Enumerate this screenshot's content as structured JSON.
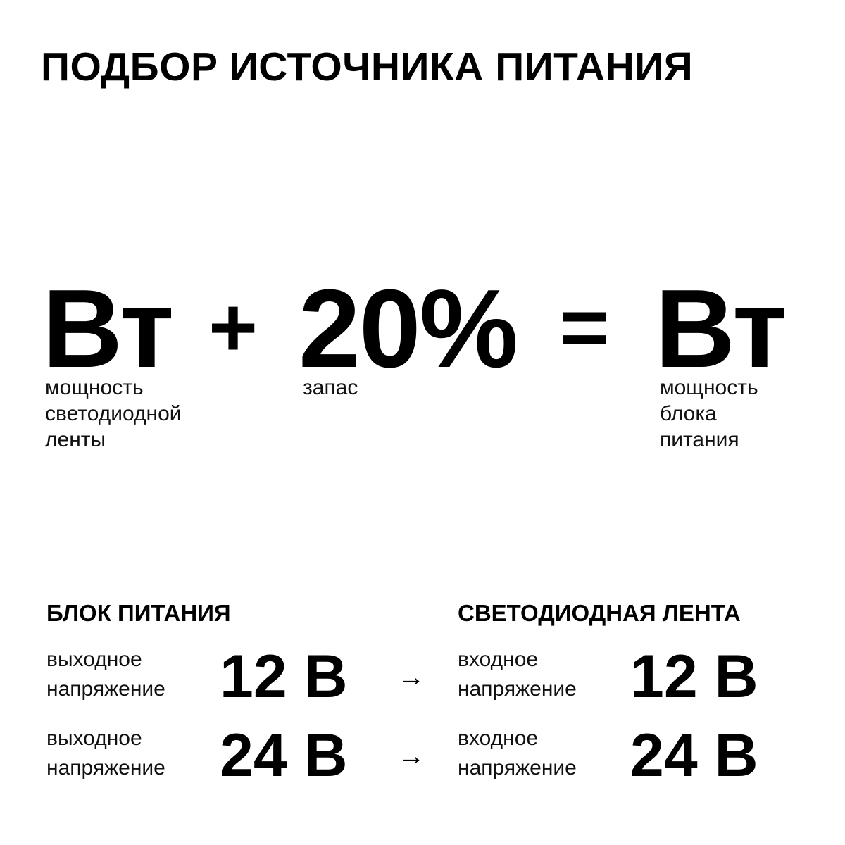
{
  "title": "ПОДБОР ИСТОЧНИКА ПИТАНИЯ",
  "formula": {
    "term1": "Вт",
    "plus": "+",
    "term2": "20%",
    "equals": "=",
    "result": "Вт",
    "term1_label": [
      "мощность",
      "светодиодной",
      "ленты"
    ],
    "term2_label": [
      "запас"
    ],
    "result_label": [
      "мощность",
      "блока",
      "питания"
    ]
  },
  "left_column": {
    "heading": "БЛОК ПИТАНИЯ",
    "rows": [
      {
        "label": [
          "выходное",
          "напряжение"
        ],
        "value": "12 В"
      },
      {
        "label": [
          "выходное",
          "напряжение"
        ],
        "value": "24 В"
      }
    ]
  },
  "right_column": {
    "heading": "СВЕТОДИОДНАЯ ЛЕНТА",
    "rows": [
      {
        "label": [
          "входное",
          "напряжение"
        ],
        "value": "12 В"
      },
      {
        "label": [
          "входное",
          "напряжение"
        ],
        "value": "24 В"
      }
    ]
  },
  "arrow": "→"
}
